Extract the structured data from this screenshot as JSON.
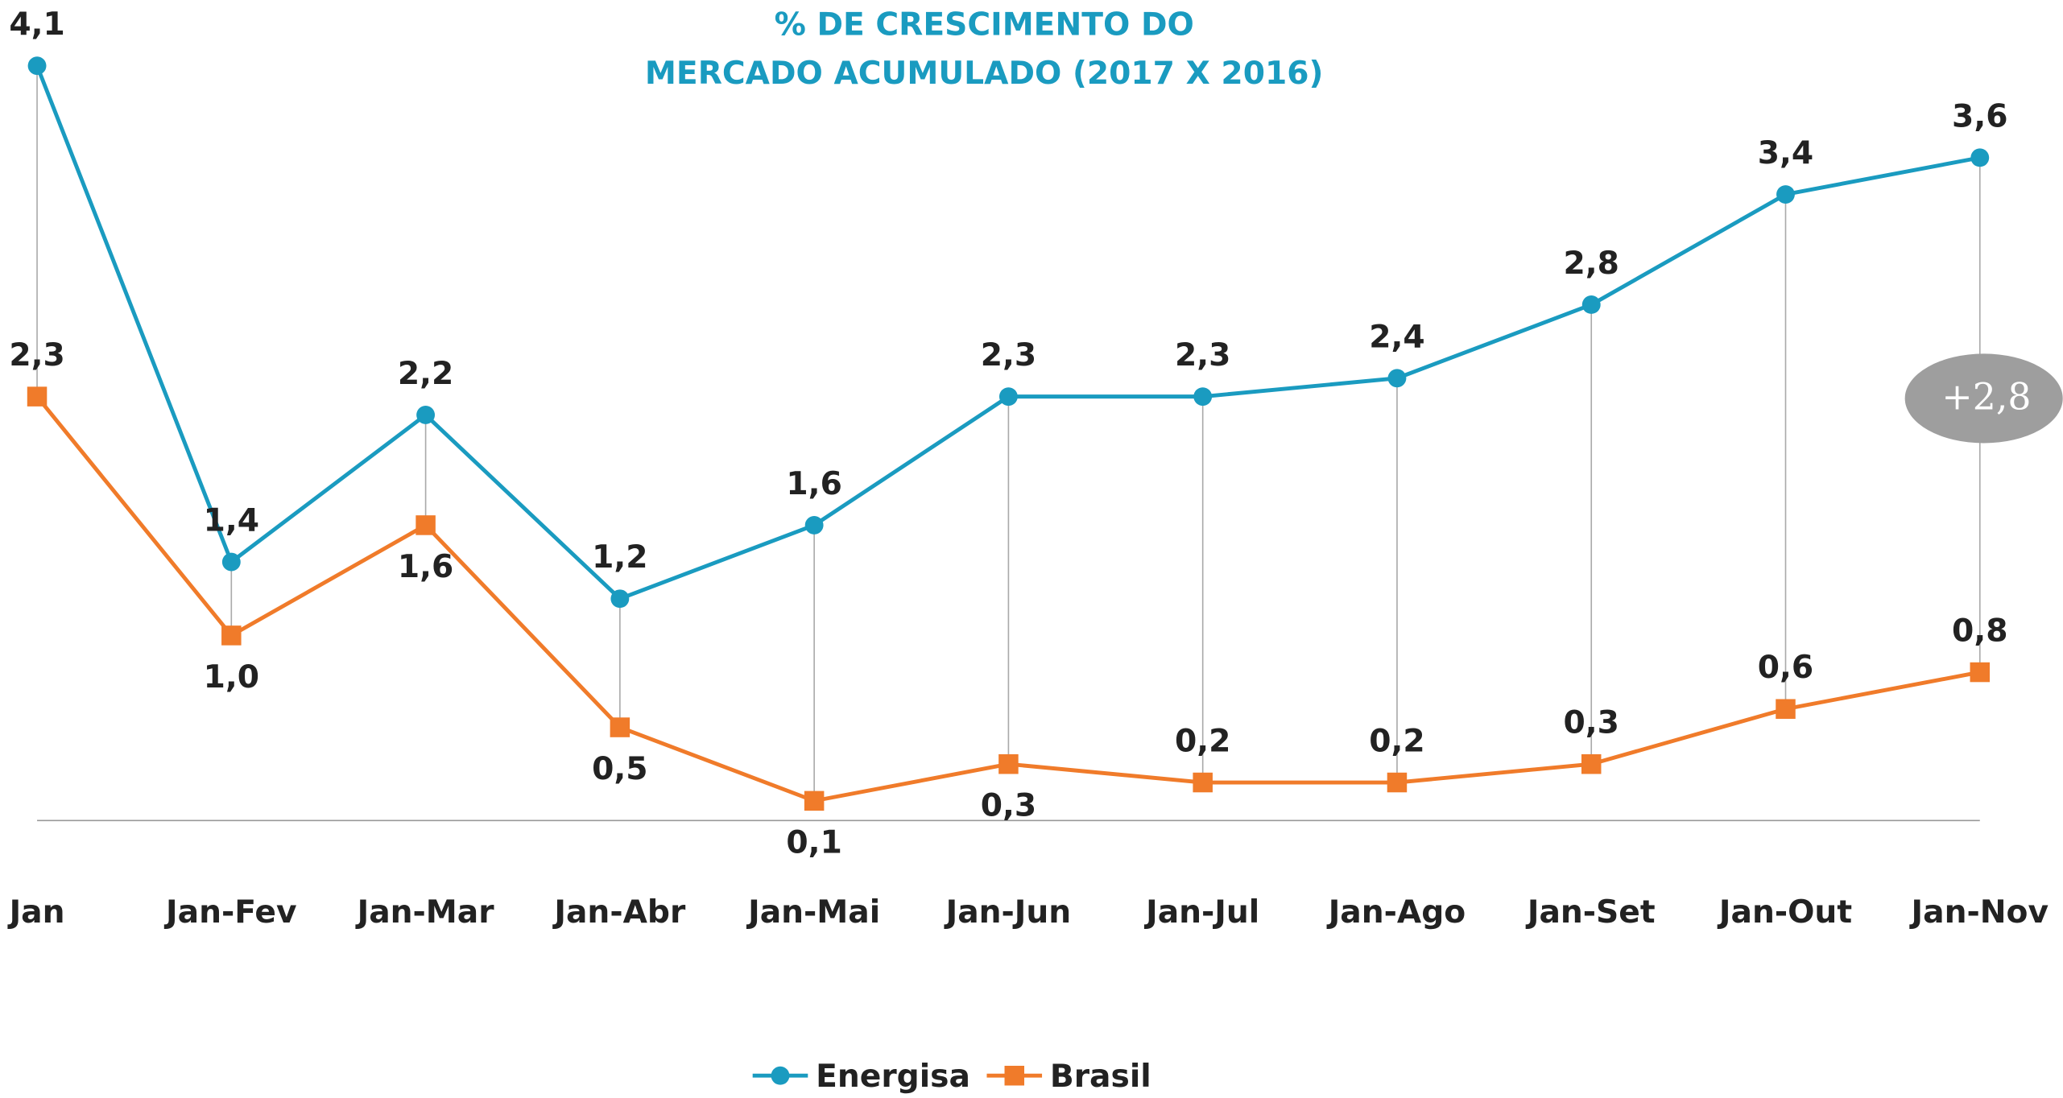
{
  "chart_data": {
    "type": "line",
    "title": "% DE CRESCIMENTO DO MERCADO ACUMULADO (2017 X 2016)",
    "title_color": "#1a9bc0",
    "categories": [
      "Jan",
      "Jan-Fev",
      "Jan-Mar",
      "Jan-Abr",
      "Jan-Mai",
      "Jan-Jun",
      "Jan-Jul",
      "Jan-Ago",
      "Jan-Set",
      "Jan-Out",
      "Jan-Nov"
    ],
    "series": [
      {
        "name": "Energisa",
        "color": "#1a9bc0",
        "marker": "circle",
        "values": [
          4.1,
          1.4,
          2.2,
          1.2,
          1.6,
          2.3,
          2.3,
          2.4,
          2.8,
          3.4,
          3.6
        ],
        "value_labels": [
          "4,1",
          "1,4",
          "2,2",
          "1,2",
          "1,6",
          "2,3",
          "2,3",
          "2,4",
          "2,8",
          "3,4",
          "3,6"
        ]
      },
      {
        "name": "Brasil",
        "color": "#f07b2a",
        "marker": "square",
        "values": [
          2.3,
          1.0,
          1.6,
          0.5,
          0.1,
          0.3,
          0.2,
          0.2,
          0.3,
          0.6,
          0.8
        ],
        "value_labels": [
          "2,3",
          "1,0",
          "1,6",
          "0,5",
          "0,1",
          "0,3",
          "0,2",
          "0,2",
          "0,3",
          "0,6",
          "0,8"
        ]
      }
    ],
    "ylim": [
      0,
      4
    ],
    "annotation": "+2,8",
    "legend": "bottom"
  }
}
